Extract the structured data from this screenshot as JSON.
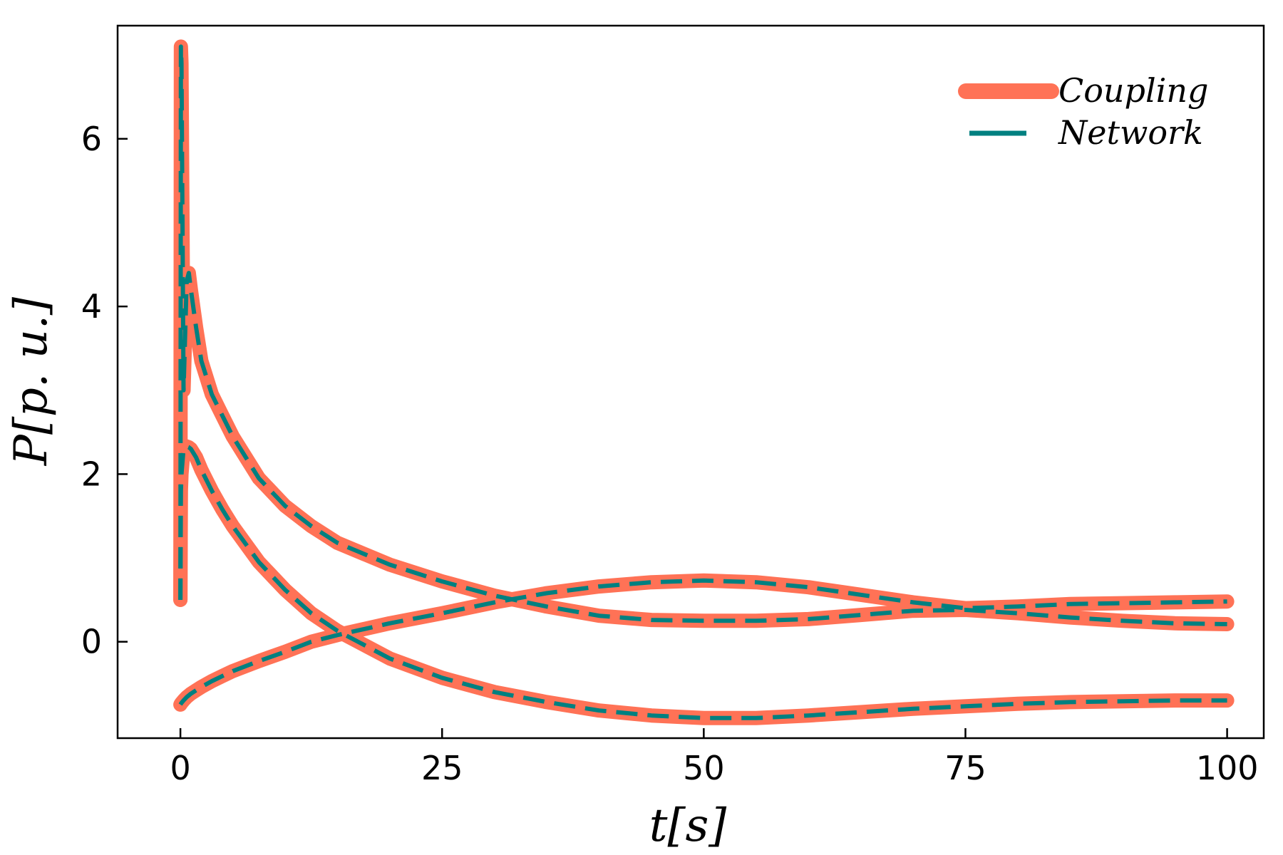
{
  "chart_data": {
    "type": "line",
    "xlabel": "t[s]",
    "ylabel": "P[p. u.]",
    "xlim": [
      -6,
      103.5
    ],
    "ylim": [
      -1.15,
      7.35
    ],
    "xticks": [
      0,
      25,
      50,
      75,
      100
    ],
    "yticks": [
      0,
      2,
      4,
      6
    ],
    "xtick_labels": [
      "0",
      "25",
      "50",
      "75",
      "100"
    ],
    "ytick_labels": [
      "0",
      "2",
      "4",
      "6"
    ],
    "grid": false,
    "legend_position": "top-right",
    "colors": {
      "coupling": "#ff7256",
      "network": "#008080"
    },
    "legend": [
      {
        "label": "Coupling",
        "style": "solid-thick",
        "color": "#ff7256"
      },
      {
        "label": "Network",
        "style": "dashed",
        "color": "#008080"
      }
    ],
    "x": [
      0,
      0.05,
      0.1,
      0.3,
      0.6,
      0.8,
      1,
      1.5,
      2,
      3,
      4,
      5,
      7.5,
      10,
      12.5,
      15,
      20,
      25,
      30,
      35,
      40,
      45,
      50,
      55,
      60,
      65,
      70,
      75,
      80,
      85,
      90,
      95,
      100
    ],
    "series": [
      {
        "values": [
          0.5,
          7.1,
          6.9,
          3.0,
          4.3,
          4.4,
          4.2,
          3.75,
          3.35,
          2.95,
          2.7,
          2.45,
          1.95,
          1.62,
          1.38,
          1.18,
          0.92,
          0.72,
          0.55,
          0.42,
          0.31,
          0.26,
          0.25,
          0.25,
          0.27,
          0.32,
          0.37,
          0.38,
          0.34,
          0.29,
          0.25,
          0.22,
          0.21
        ]
      },
      {
        "values": [
          0.5,
          1.8,
          2.0,
          2.3,
          2.33,
          2.32,
          2.3,
          2.2,
          2.05,
          1.8,
          1.58,
          1.38,
          0.95,
          0.62,
          0.34,
          0.13,
          -0.2,
          -0.43,
          -0.6,
          -0.72,
          -0.82,
          -0.88,
          -0.91,
          -0.91,
          -0.88,
          -0.84,
          -0.8,
          -0.77,
          -0.74,
          -0.72,
          -0.71,
          -0.7,
          -0.7
        ]
      },
      {
        "values": [
          -0.75,
          -0.74,
          -0.73,
          -0.7,
          -0.66,
          -0.64,
          -0.62,
          -0.58,
          -0.54,
          -0.47,
          -0.41,
          -0.35,
          -0.23,
          -0.12,
          0.0,
          0.08,
          0.22,
          0.34,
          0.47,
          0.58,
          0.66,
          0.71,
          0.73,
          0.71,
          0.65,
          0.56,
          0.47,
          0.4,
          0.42,
          0.45,
          0.46,
          0.47,
          0.48
        ]
      }
    ]
  }
}
